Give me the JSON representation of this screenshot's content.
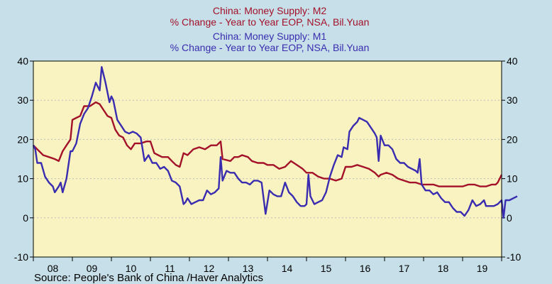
{
  "chart_data": {
    "type": "line",
    "legend": [
      {
        "title": "China: Money Supply: M2",
        "subtitle": "% Change - Year to Year    EOP, NSA, Bil.Yuan",
        "color": "#a3112a"
      },
      {
        "title": "China: Money Supply: M1",
        "subtitle": "% Change - Year to Year    EOP, NSA, Bil.Yuan",
        "color": "#3a2cb0"
      }
    ],
    "source": "Source:  People's Bank of China /Haver Analytics",
    "ylim": [
      -10,
      40
    ],
    "yticks": [
      -10,
      0,
      10,
      20,
      30,
      40
    ],
    "ytick_labels": [
      "-10",
      "0",
      "10",
      "20",
      "30",
      "40"
    ],
    "xlim": [
      2008.0,
      2020.0
    ],
    "xtick_labels": [
      "08",
      "09",
      "10",
      "11",
      "12",
      "13",
      "14",
      "15",
      "16",
      "17",
      "18",
      "19"
    ],
    "grid": true,
    "plot_background": "#f8f3c0",
    "page_background": "#c6dfe8",
    "series": [
      {
        "name": "M2",
        "color": "#a3112a",
        "points": [
          [
            2008.0,
            18.5
          ],
          [
            2008.1,
            17.5
          ],
          [
            2008.25,
            16.0
          ],
          [
            2008.4,
            15.5
          ],
          [
            2008.55,
            15.0
          ],
          [
            2008.65,
            14.5
          ],
          [
            2008.75,
            17.0
          ],
          [
            2008.85,
            18.5
          ],
          [
            2008.95,
            20.0
          ],
          [
            2009.0,
            25.0
          ],
          [
            2009.1,
            25.5
          ],
          [
            2009.2,
            26.0
          ],
          [
            2009.3,
            28.5
          ],
          [
            2009.45,
            28.5
          ],
          [
            2009.6,
            29.5
          ],
          [
            2009.7,
            29.0
          ],
          [
            2009.8,
            27.5
          ],
          [
            2009.9,
            26.0
          ],
          [
            2010.0,
            25.5
          ],
          [
            2010.1,
            22.5
          ],
          [
            2010.2,
            21.0
          ],
          [
            2010.3,
            20.5
          ],
          [
            2010.4,
            18.5
          ],
          [
            2010.5,
            17.5
          ],
          [
            2010.6,
            19.0
          ],
          [
            2010.75,
            19.0
          ],
          [
            2010.9,
            19.5
          ],
          [
            2011.0,
            19.5
          ],
          [
            2011.1,
            16.5
          ],
          [
            2011.2,
            16.0
          ],
          [
            2011.3,
            15.5
          ],
          [
            2011.45,
            15.5
          ],
          [
            2011.55,
            14.5
          ],
          [
            2011.65,
            13.5
          ],
          [
            2011.75,
            13.0
          ],
          [
            2011.85,
            16.5
          ],
          [
            2011.95,
            16.0
          ],
          [
            2012.1,
            17.5
          ],
          [
            2012.25,
            18.0
          ],
          [
            2012.4,
            17.5
          ],
          [
            2012.55,
            18.5
          ],
          [
            2012.7,
            18.5
          ],
          [
            2012.8,
            19.5
          ],
          [
            2012.85,
            15.0
          ],
          [
            2013.05,
            14.5
          ],
          [
            2013.15,
            15.5
          ],
          [
            2013.25,
            15.5
          ],
          [
            2013.35,
            16.0
          ],
          [
            2013.5,
            15.5
          ],
          [
            2013.6,
            14.5
          ],
          [
            2013.75,
            14.0
          ],
          [
            2013.9,
            14.0
          ],
          [
            2014.0,
            13.5
          ],
          [
            2014.15,
            13.5
          ],
          [
            2014.3,
            12.5
          ],
          [
            2014.45,
            13.0
          ],
          [
            2014.6,
            14.5
          ],
          [
            2014.75,
            13.5
          ],
          [
            2014.9,
            12.5
          ],
          [
            2015.0,
            11.5
          ],
          [
            2015.15,
            11.5
          ],
          [
            2015.3,
            10.5
          ],
          [
            2015.45,
            10.0
          ],
          [
            2015.6,
            10.0
          ],
          [
            2015.75,
            9.5
          ],
          [
            2015.9,
            10.0
          ],
          [
            2016.0,
            13.0
          ],
          [
            2016.15,
            13.0
          ],
          [
            2016.3,
            13.5
          ],
          [
            2016.45,
            13.0
          ],
          [
            2016.6,
            12.5
          ],
          [
            2016.75,
            11.5
          ],
          [
            2016.85,
            10.5
          ],
          [
            2016.9,
            11.0
          ],
          [
            2017.05,
            11.5
          ],
          [
            2017.2,
            11.0
          ],
          [
            2017.35,
            10.0
          ],
          [
            2017.5,
            9.5
          ],
          [
            2017.65,
            9.0
          ],
          [
            2017.8,
            9.0
          ],
          [
            2017.95,
            8.5
          ],
          [
            2018.1,
            8.5
          ],
          [
            2018.25,
            8.5
          ],
          [
            2018.4,
            8.0
          ],
          [
            2018.55,
            8.0
          ],
          [
            2018.7,
            8.0
          ],
          [
            2018.85,
            8.0
          ],
          [
            2019.0,
            8.0
          ],
          [
            2019.15,
            8.5
          ],
          [
            2019.3,
            8.5
          ],
          [
            2019.45,
            8.0
          ],
          [
            2019.6,
            8.0
          ],
          [
            2019.75,
            8.5
          ],
          [
            2019.85,
            8.5
          ],
          [
            2019.9,
            9.0
          ],
          [
            2020.0,
            11.0
          ]
        ]
      },
      {
        "name": "M1",
        "color": "#3a2cb0",
        "points": [
          [
            2008.0,
            18.5
          ],
          [
            2008.05,
            17.5
          ],
          [
            2008.1,
            14.0
          ],
          [
            2008.2,
            14.0
          ],
          [
            2008.3,
            10.5
          ],
          [
            2008.4,
            9.0
          ],
          [
            2008.5,
            8.0
          ],
          [
            2008.55,
            6.5
          ],
          [
            2008.65,
            8.0
          ],
          [
            2008.7,
            9.0
          ],
          [
            2008.75,
            6.5
          ],
          [
            2008.85,
            10.0
          ],
          [
            2008.95,
            17.0
          ],
          [
            2009.0,
            17.0
          ],
          [
            2009.1,
            19.0
          ],
          [
            2009.2,
            24.0
          ],
          [
            2009.3,
            26.5
          ],
          [
            2009.4,
            28.0
          ],
          [
            2009.5,
            31.0
          ],
          [
            2009.6,
            34.5
          ],
          [
            2009.7,
            32.5
          ],
          [
            2009.75,
            38.5
          ],
          [
            2009.85,
            34.5
          ],
          [
            2009.95,
            29.5
          ],
          [
            2010.0,
            31.0
          ],
          [
            2010.05,
            30.0
          ],
          [
            2010.15,
            25.0
          ],
          [
            2010.25,
            23.5
          ],
          [
            2010.35,
            22.0
          ],
          [
            2010.45,
            21.5
          ],
          [
            2010.55,
            22.0
          ],
          [
            2010.65,
            21.5
          ],
          [
            2010.75,
            20.5
          ],
          [
            2010.85,
            14.5
          ],
          [
            2010.95,
            16.0
          ],
          [
            2011.05,
            14.0
          ],
          [
            2011.15,
            14.0
          ],
          [
            2011.25,
            12.5
          ],
          [
            2011.35,
            13.0
          ],
          [
            2011.45,
            12.0
          ],
          [
            2011.55,
            9.5
          ],
          [
            2011.65,
            9.0
          ],
          [
            2011.75,
            8.0
          ],
          [
            2011.85,
            3.5
          ],
          [
            2011.9,
            4.0
          ],
          [
            2011.95,
            5.0
          ],
          [
            2012.05,
            3.5
          ],
          [
            2012.15,
            4.0
          ],
          [
            2012.25,
            4.5
          ],
          [
            2012.35,
            4.5
          ],
          [
            2012.45,
            7.0
          ],
          [
            2012.55,
            6.0
          ],
          [
            2012.65,
            6.5
          ],
          [
            2012.75,
            7.5
          ],
          [
            2012.8,
            15.5
          ],
          [
            2012.85,
            9.5
          ],
          [
            2012.95,
            12.0
          ],
          [
            2013.05,
            11.5
          ],
          [
            2013.15,
            11.5
          ],
          [
            2013.25,
            10.0
          ],
          [
            2013.35,
            9.0
          ],
          [
            2013.45,
            9.0
          ],
          [
            2013.55,
            8.5
          ],
          [
            2013.65,
            9.5
          ],
          [
            2013.75,
            9.5
          ],
          [
            2013.85,
            9.0
          ],
          [
            2013.95,
            1.0
          ],
          [
            2014.05,
            7.0
          ],
          [
            2014.15,
            6.0
          ],
          [
            2014.25,
            5.5
          ],
          [
            2014.35,
            5.5
          ],
          [
            2014.45,
            9.0
          ],
          [
            2014.55,
            6.5
          ],
          [
            2014.65,
            5.5
          ],
          [
            2014.75,
            4.0
          ],
          [
            2014.85,
            3.0
          ],
          [
            2014.95,
            3.0
          ],
          [
            2015.0,
            3.5
          ],
          [
            2015.05,
            11.0
          ],
          [
            2015.1,
            5.5
          ],
          [
            2015.2,
            3.5
          ],
          [
            2015.3,
            4.0
          ],
          [
            2015.4,
            4.5
          ],
          [
            2015.5,
            6.5
          ],
          [
            2015.6,
            10.5
          ],
          [
            2015.7,
            13.5
          ],
          [
            2015.8,
            16.0
          ],
          [
            2015.9,
            15.5
          ],
          [
            2015.95,
            18.0
          ],
          [
            2016.05,
            17.5
          ],
          [
            2016.1,
            22.0
          ],
          [
            2016.2,
            23.5
          ],
          [
            2016.3,
            24.5
          ],
          [
            2016.35,
            25.5
          ],
          [
            2016.45,
            25.0
          ],
          [
            2016.55,
            24.5
          ],
          [
            2016.65,
            23.0
          ],
          [
            2016.75,
            21.5
          ],
          [
            2016.8,
            20.5
          ],
          [
            2016.85,
            14.5
          ],
          [
            2016.9,
            21.0
          ],
          [
            2017.0,
            18.5
          ],
          [
            2017.1,
            18.5
          ],
          [
            2017.2,
            17.5
          ],
          [
            2017.3,
            15.0
          ],
          [
            2017.4,
            14.0
          ],
          [
            2017.5,
            14.0
          ],
          [
            2017.6,
            13.0
          ],
          [
            2017.7,
            12.5
          ],
          [
            2017.8,
            12.0
          ],
          [
            2017.85,
            11.5
          ],
          [
            2017.9,
            15.0
          ],
          [
            2017.95,
            8.5
          ],
          [
            2018.05,
            7.0
          ],
          [
            2018.15,
            7.0
          ],
          [
            2018.25,
            6.0
          ],
          [
            2018.35,
            6.5
          ],
          [
            2018.45,
            5.0
          ],
          [
            2018.55,
            4.0
          ],
          [
            2018.65,
            4.0
          ],
          [
            2018.75,
            2.5
          ],
          [
            2018.85,
            1.5
          ],
          [
            2018.95,
            1.5
          ],
          [
            2019.05,
            0.5
          ],
          [
            2019.15,
            2.0
          ],
          [
            2019.25,
            4.5
          ],
          [
            2019.35,
            3.0
          ],
          [
            2019.45,
            3.5
          ],
          [
            2019.55,
            4.5
          ],
          [
            2019.6,
            3.0
          ],
          [
            2019.7,
            3.0
          ],
          [
            2019.8,
            3.0
          ],
          [
            2019.9,
            3.5
          ],
          [
            2019.95,
            4.0
          ],
          [
            2020.0,
            4.5
          ],
          [
            2020.05,
            0.0
          ],
          [
            2020.1,
            4.5
          ],
          [
            2020.2,
            4.5
          ],
          [
            2020.3,
            5.0
          ],
          [
            2020.4,
            5.5
          ]
        ]
      }
    ]
  }
}
